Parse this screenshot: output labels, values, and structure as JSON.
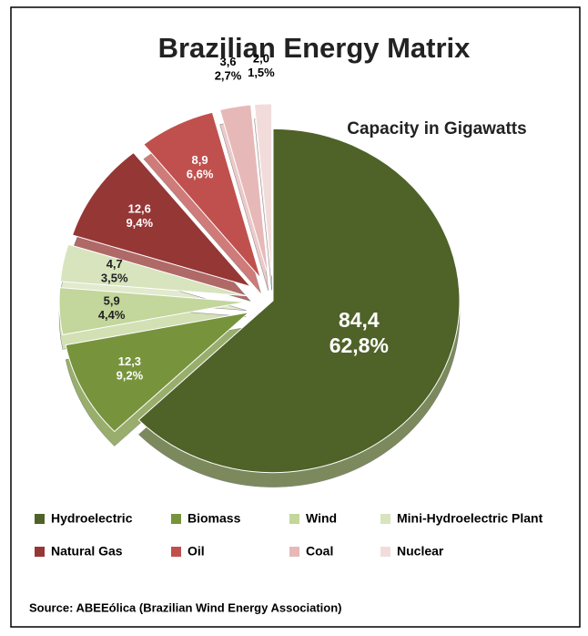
{
  "chart_data": {
    "type": "pie",
    "title": "Brazilian Energy Matrix",
    "subtitle": "Capacity in Gigawatts",
    "categories": [
      "Hydroelectric",
      "Biomass",
      "Wind",
      "Mini-Hydroelectric Plant",
      "Natural Gas",
      "Oil",
      "Coal",
      "Nuclear"
    ],
    "values": [
      84.4,
      12.3,
      5.9,
      4.7,
      12.6,
      8.9,
      3.6,
      2.0
    ],
    "value_labels": [
      "84,4",
      "12,3",
      "5,9",
      "4,7",
      "12,6",
      "8,9",
      "3,6",
      "2,0"
    ],
    "percents": [
      62.8,
      9.2,
      4.4,
      3.5,
      9.4,
      6.6,
      2.7,
      1.5
    ],
    "percent_labels": [
      "62,8%",
      "9,2%",
      "4,4%",
      "3,5%",
      "9,4%",
      "6,6%",
      "2,7%",
      "1,5%"
    ],
    "colors": [
      "#4f6228",
      "#77933c",
      "#c3d69b",
      "#d7e4bd",
      "#953735",
      "#c0504d",
      "#e6b9b8",
      "#f2dcdb"
    ],
    "source": "Source: ABEEólica (Brazilian Wind Energy Association)"
  }
}
